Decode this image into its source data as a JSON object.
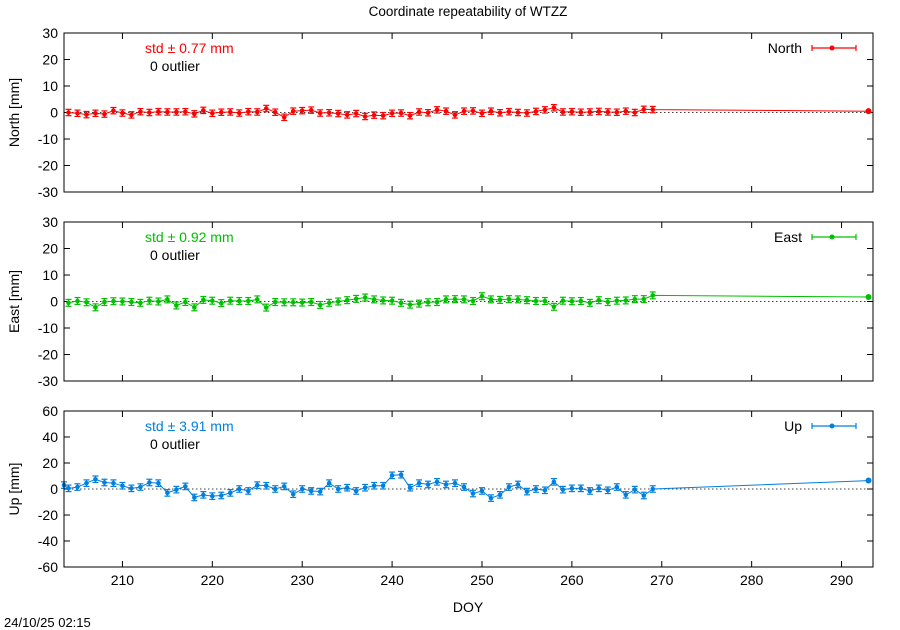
{
  "title": "Coordinate repeatability of WTZZ",
  "timestamp": "24/10/25 02:15",
  "xlabel": "DOY",
  "xlim": [
    203.5,
    293.5
  ],
  "xticks": [
    210,
    220,
    230,
    240,
    250,
    260,
    270,
    280,
    290
  ],
  "chart_data": [
    {
      "type": "line",
      "name": "North",
      "ylabel": "North [mm]",
      "ylim": [
        -30,
        30
      ],
      "yticks": [
        -30,
        -20,
        -10,
        0,
        10,
        20,
        30
      ],
      "color": "#ff0000",
      "std_label": "std ± 0.77 mm",
      "outlier_label": "0 outlier",
      "x": [
        204,
        205,
        206,
        207,
        208,
        209,
        210,
        211,
        212,
        213,
        214,
        215,
        216,
        217,
        218,
        219,
        220,
        221,
        222,
        223,
        224,
        225,
        226,
        227,
        228,
        229,
        230,
        231,
        232,
        233,
        234,
        235,
        236,
        237,
        238,
        239,
        240,
        241,
        242,
        243,
        244,
        245,
        246,
        247,
        248,
        249,
        250,
        251,
        252,
        253,
        254,
        255,
        256,
        257,
        258,
        259,
        260,
        261,
        262,
        263,
        264,
        265,
        266,
        267,
        268,
        269,
        293
      ],
      "y": [
        0.0,
        -0.3,
        -0.8,
        -0.3,
        -0.6,
        0.7,
        -0.2,
        -0.9,
        0.3,
        0.0,
        0.3,
        0.2,
        0.2,
        0.3,
        -0.5,
        0.8,
        -0.3,
        0.1,
        0.2,
        -0.2,
        0.3,
        0.2,
        1.5,
        0.1,
        -1.8,
        0.5,
        0.7,
        0.9,
        -0.2,
        -0.1,
        -0.4,
        -0.9,
        -0.4,
        -1.5,
        -1.0,
        -1.2,
        -0.3,
        -0.2,
        -1.2,
        0.2,
        -0.1,
        1.0,
        0.5,
        -0.9,
        0.5,
        0.6,
        -0.3,
        0.5,
        -0.1,
        0.3,
        0.0,
        -0.2,
        0.4,
        1.0,
        1.8,
        0.2,
        0.3,
        0.1,
        0.2,
        0.4,
        0.2,
        0.1,
        0.5,
        0.0,
        1.2,
        1.1,
        0.5
      ],
      "err": 1.2
    },
    {
      "type": "line",
      "name": "East",
      "ylabel": "East [mm]",
      "ylim": [
        -30,
        30
      ],
      "yticks": [
        -30,
        -20,
        -10,
        0,
        10,
        20,
        30
      ],
      "color": "#00c000",
      "std_label": "std ± 0.92 mm",
      "outlier_label": "0 outlier",
      "x": [
        204,
        205,
        206,
        207,
        208,
        209,
        210,
        211,
        212,
        213,
        214,
        215,
        216,
        217,
        218,
        219,
        220,
        221,
        222,
        223,
        224,
        225,
        226,
        227,
        228,
        229,
        230,
        231,
        232,
        233,
        234,
        235,
        236,
        237,
        238,
        239,
        240,
        241,
        242,
        243,
        244,
        245,
        246,
        247,
        248,
        249,
        250,
        251,
        252,
        253,
        254,
        255,
        256,
        257,
        258,
        259,
        260,
        261,
        262,
        263,
        264,
        265,
        266,
        267,
        268,
        269,
        293
      ],
      "y": [
        -0.5,
        0.2,
        -0.3,
        -2.2,
        -0.2,
        0.1,
        0.0,
        -0.2,
        -0.5,
        0.3,
        0.0,
        0.8,
        -1.5,
        -0.2,
        -2.2,
        0.6,
        0.3,
        -0.6,
        0.3,
        0.2,
        0.2,
        0.8,
        -2.3,
        -0.2,
        -0.3,
        -0.3,
        -0.4,
        -0.2,
        -1.3,
        -0.5,
        0.0,
        0.5,
        1.0,
        1.5,
        0.8,
        0.4,
        0.3,
        -0.5,
        -1.2,
        -0.8,
        -0.3,
        -0.2,
        0.8,
        0.9,
        0.8,
        0.2,
        2.0,
        0.8,
        0.6,
        0.9,
        0.8,
        0.5,
        0.2,
        0.2,
        -2.0,
        0.3,
        0.1,
        0.2,
        -0.5,
        0.5,
        -0.2,
        0.3,
        0.4,
        0.9,
        0.9,
        2.3,
        1.7
      ],
      "err": 1.3
    },
    {
      "type": "line",
      "name": "Up",
      "ylabel": "Up [mm]",
      "ylim": [
        -60,
        60
      ],
      "yticks": [
        -60,
        -40,
        -20,
        0,
        20,
        40,
        60
      ],
      "color": "#0080e0",
      "std_label": "std ± 3.91 mm",
      "outlier_label": "0 outlier",
      "x": [
        203.5,
        204,
        205,
        206,
        207,
        208,
        209,
        210,
        211,
        212,
        213,
        214,
        215,
        216,
        217,
        218,
        219,
        220,
        221,
        222,
        223,
        224,
        225,
        226,
        227,
        228,
        229,
        230,
        231,
        232,
        233,
        234,
        235,
        236,
        237,
        238,
        239,
        240,
        241,
        242,
        243,
        244,
        245,
        246,
        247,
        248,
        249,
        250,
        251,
        252,
        253,
        254,
        255,
        256,
        257,
        258,
        259,
        260,
        261,
        262,
        263,
        264,
        265,
        266,
        267,
        268,
        269,
        293
      ],
      "y": [
        3.0,
        0.5,
        1.5,
        4.5,
        7.5,
        5.0,
        4.5,
        2.5,
        0.5,
        1.5,
        5.0,
        4.5,
        -3.0,
        -0.5,
        2.0,
        -6.5,
        -4.5,
        -5.5,
        -5.0,
        -3.0,
        0.0,
        -1.5,
        3.0,
        2.5,
        0.0,
        2.0,
        -4.0,
        0.0,
        -1.5,
        -2.0,
        4.5,
        0.0,
        1.0,
        -1.5,
        1.0,
        2.5,
        2.5,
        10.5,
        11.0,
        1.0,
        4.5,
        3.5,
        5.5,
        3.5,
        4.5,
        1.5,
        -3.5,
        -1.5,
        -7.0,
        -4.5,
        1.5,
        3.5,
        -2.0,
        0.0,
        -1.0,
        5.5,
        -0.5,
        0.5,
        0.5,
        -1.5,
        0.5,
        -1.0,
        1.5,
        -4.5,
        -0.5,
        -5.0,
        0.0,
        6.5
      ],
      "err": 2.5
    }
  ]
}
